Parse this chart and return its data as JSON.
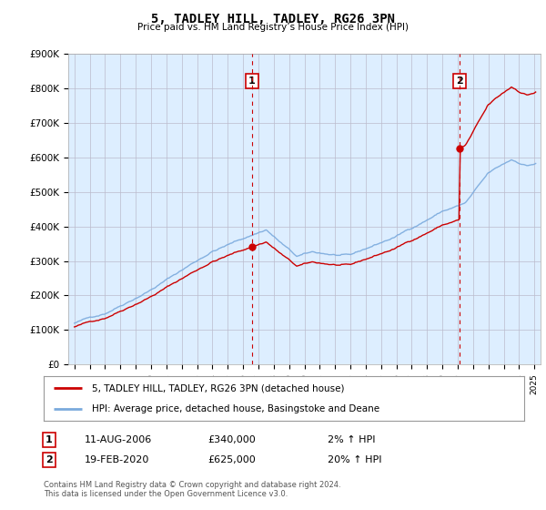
{
  "title": "5, TADLEY HILL, TADLEY, RG26 3PN",
  "subtitle": "Price paid vs. HM Land Registry’s House Price Index (HPI)",
  "ylim": [
    0,
    900000
  ],
  "yticks": [
    0,
    100000,
    200000,
    300000,
    400000,
    500000,
    600000,
    700000,
    800000,
    900000
  ],
  "ytick_labels": [
    "£0",
    "£100K",
    "£200K",
    "£300K",
    "£400K",
    "£500K",
    "£600K",
    "£700K",
    "£800K",
    "£900K"
  ],
  "sale1_date": 2006.58,
  "sale1_price": 340000,
  "sale2_date": 2020.12,
  "sale2_price": 625000,
  "legend_line1": "5, TADLEY HILL, TADLEY, RG26 3PN (detached house)",
  "legend_line2": "HPI: Average price, detached house, Basingstoke and Deane",
  "table_row1": [
    "1",
    "11-AUG-2006",
    "£340,000",
    "2% ↑ HPI"
  ],
  "table_row2": [
    "2",
    "19-FEB-2020",
    "£625,000",
    "20% ↑ HPI"
  ],
  "footnote": "Contains HM Land Registry data © Crown copyright and database right 2024.\nThis data is licensed under the Open Government Licence v3.0.",
  "line_color_property": "#cc0000",
  "line_color_hpi": "#7aaadd",
  "vline_color": "#cc0000",
  "background_color": "#ffffff",
  "plot_bg_color": "#ddeeff",
  "grid_color": "#bbbbcc",
  "label_box_color": "#cc0000"
}
